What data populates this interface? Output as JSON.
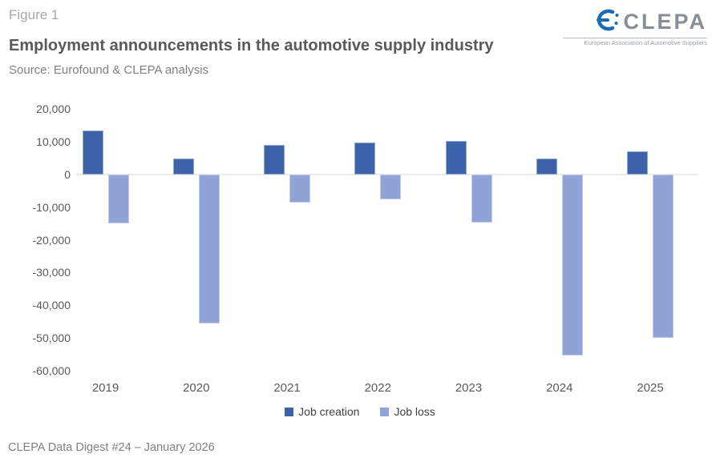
{
  "header": {
    "figure_label": "Figure 1",
    "title": "Employment announcements in the automotive supply industry",
    "source": "Source: Eurofound & CLEPA analysis"
  },
  "logo": {
    "name": "CLEPA",
    "tagline": "European Association of Automotive Suppliers",
    "icon_color": "#1b6cb5",
    "text_color": "#878e98"
  },
  "chart_data": {
    "type": "bar",
    "title": "Employment announcements in the automotive supply industry",
    "categories": [
      "2019",
      "2020",
      "2021",
      "2022",
      "2023",
      "2024",
      "2025"
    ],
    "series": [
      {
        "name": "Job creation",
        "color": "#3c63a9",
        "values": [
          13500,
          4900,
          9000,
          9700,
          10200,
          5000,
          7100
        ]
      },
      {
        "name": "Job loss",
        "color": "#90a3d6",
        "values": [
          -15000,
          -45700,
          -8700,
          -7700,
          -14800,
          -55300,
          -50000
        ]
      }
    ],
    "ylim": [
      -60000,
      20000
    ],
    "ytick_interval": 10000,
    "ytick_labels": [
      "20,000",
      "10,000",
      "0",
      "-10,000",
      "-20,000",
      "-30,000",
      "-40,000",
      "-50,000",
      "-60,000"
    ],
    "grid": "zero-line-only",
    "legend_position": "bottom",
    "zero_line_color": "#ebebeb"
  },
  "footer": {
    "text": "CLEPA Data Digest #24 – January 2026"
  }
}
